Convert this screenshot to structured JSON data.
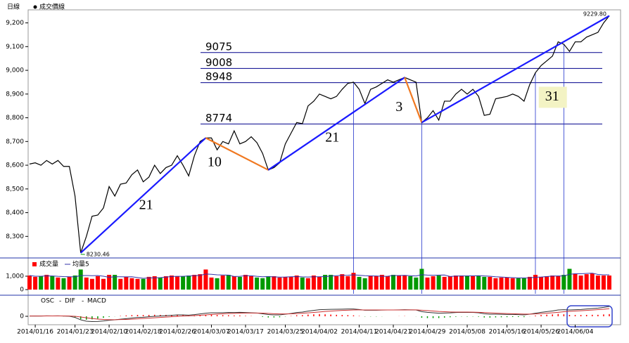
{
  "chart_data": [
    {
      "type": "line",
      "title": "日線",
      "categories": [
        null,
        "2014/01/16",
        null,
        null,
        null,
        null,
        null,
        null,
        "2014/01/23",
        null,
        null,
        null,
        null,
        null,
        "2014/02/10",
        null,
        null,
        null,
        null,
        null,
        "2014/02/18",
        null,
        null,
        null,
        null,
        null,
        "2014/02/26",
        null,
        null,
        null,
        null,
        null,
        "2014/03/07",
        null,
        null,
        null,
        null,
        null,
        "2014/03/17",
        null,
        null,
        null,
        null,
        null,
        null,
        "2014/03/25",
        null,
        null,
        null,
        null,
        null,
        "2014/04/02",
        null,
        null,
        null,
        null,
        null,
        null,
        "2014/04/11",
        null,
        null,
        null,
        null,
        null,
        "2014/04/21",
        null,
        null,
        null,
        null,
        null,
        "2014/04/29",
        null,
        null,
        null,
        null,
        null,
        null,
        "2014/05/08",
        null,
        null,
        null,
        null,
        null,
        null,
        "2014/05/16",
        null,
        null,
        null,
        null,
        null,
        "2014/05/26",
        null,
        null,
        null,
        null,
        null,
        "2014/06/04",
        null,
        null,
        null,
        null,
        null,
        null
      ],
      "series": [
        {
          "name": "成交價線",
          "color": "#000000",
          "values": [
            8605,
            8610,
            8600,
            8620,
            8605,
            8620,
            8595,
            8595,
            8470,
            8230.46,
            8300,
            8385,
            8390,
            8420,
            8510,
            8470,
            8520,
            8525,
            8560,
            8580,
            8530,
            8550,
            8600,
            8565,
            8590,
            8600,
            8640,
            8600,
            8555,
            8640,
            8700,
            8715,
            8715,
            8665,
            8700,
            8690,
            8745,
            8690,
            8700,
            8720,
            8695,
            8650,
            8580,
            8590,
            8610,
            8690,
            8735,
            8780,
            8775,
            8850,
            8870,
            8900,
            8890,
            8880,
            8890,
            8920,
            8945,
            8950,
            8920,
            8860,
            8920,
            8930,
            8945,
            8960,
            8950,
            8960,
            8970,
            8960,
            8950,
            8780,
            8800,
            8830,
            8790,
            8870,
            8870,
            8900,
            8920,
            8900,
            8920,
            8890,
            8810,
            8815,
            8880,
            8885,
            8890,
            8900,
            8890,
            8870,
            8940,
            8990,
            9020,
            9040,
            9060,
            9120,
            9110,
            9080,
            9120,
            9120,
            9140,
            9150,
            9160,
            9200,
            9229.8
          ]
        }
      ],
      "ylim": [
        8215,
        9255
      ],
      "yticks": [
        {
          "value": 8300,
          "label": "8,300"
        },
        {
          "value": 8400,
          "label": "8,400"
        },
        {
          "value": 8500,
          "label": "8,500"
        },
        {
          "value": 8600,
          "label": "8,600"
        },
        {
          "value": 8700,
          "label": "8,700"
        },
        {
          "value": 8800,
          "label": "8,800"
        },
        {
          "value": 8900,
          "label": "8,900"
        },
        {
          "value": 9000,
          "label": "9,000"
        },
        {
          "value": 9100,
          "label": "9,100"
        },
        {
          "value": 9200,
          "label": "9,200"
        }
      ],
      "min_label": "8230.46",
      "max_label": "9229.80",
      "levels": [
        9075,
        9008,
        8948,
        8774
      ],
      "level_color": "#00008b",
      "trend_lines": [
        {
          "start": [
            9,
            8230.46
          ],
          "end": [
            31,
            8715
          ],
          "label": "21",
          "color": "#1a1aff"
        },
        {
          "start": [
            31,
            8715
          ],
          "end": [
            42,
            8580
          ],
          "label": "10",
          "color": "#f07820"
        },
        {
          "start": [
            42,
            8580
          ],
          "end": [
            66,
            8970
          ],
          "label": "21",
          "color": "#1a1aff"
        },
        {
          "start": [
            66,
            8970
          ],
          "end": [
            69,
            8780
          ],
          "label": "3",
          "color": "#f07820"
        },
        {
          "start": [
            69,
            8780
          ],
          "end": [
            102,
            9229.8
          ],
          "label": "31",
          "color": "#1a1aff"
        }
      ],
      "vlines": [
        57,
        69,
        89,
        94
      ]
    },
    {
      "type": "bar",
      "series": [
        {
          "name": "成交量",
          "up_color": "#ff0000",
          "down_color": "#009900",
          "values": [
            1050,
            950,
            1000,
            1100,
            1000,
            900,
            850,
            950,
            1050,
            1500,
            900,
            800,
            1000,
            800,
            1100,
            1100,
            800,
            950,
            850,
            800,
            800,
            950,
            1000,
            900,
            1000,
            1050,
            1000,
            1000,
            1050,
            1100,
            1150,
            1500,
            900,
            850,
            1050,
            1100,
            1000,
            950,
            1100,
            1000,
            900,
            850,
            1000,
            1000,
            900,
            950,
            950,
            1050,
            900,
            850,
            1050,
            950,
            1100,
            1100,
            1000,
            1150,
            1000,
            1250,
            950,
            850,
            1050,
            1000,
            1100,
            1000,
            1100,
            1050,
            1050,
            1000,
            900,
            1550,
            900,
            1000,
            1050,
            950,
            1000,
            1050,
            1050,
            1050,
            1000,
            1050,
            950,
            950,
            850,
            900,
            900,
            850,
            850,
            850,
            950,
            1100,
            950,
            1000,
            1050,
            1000,
            1100,
            1550,
            1200,
            1050,
            1150,
            1200,
            1050,
            1050,
            1050
          ]
        }
      ],
      "average": {
        "name": "均量5",
        "window": 5,
        "color": "#3333aa"
      },
      "ylim": [
        0,
        2100
      ],
      "yticks": [
        0,
        {
          "value": 1000,
          "label": "1,000"
        }
      ]
    },
    {
      "type": "macd",
      "series": [
        {
          "name": "OSC",
          "up_color": "#ff0000",
          "down_color": "#009900",
          "values": [
            0,
            1,
            0,
            1,
            0,
            1,
            -1,
            -1,
            -10,
            -24,
            -29,
            -26,
            -20,
            -13,
            -5,
            -1,
            3,
            7,
            10,
            12,
            11,
            12,
            13,
            12,
            12,
            12,
            13,
            10,
            6,
            8,
            11,
            14,
            14,
            11,
            10,
            9,
            7,
            7,
            4,
            2,
            0,
            -5,
            -10,
            -10,
            -8,
            -2,
            3,
            9,
            10,
            15,
            17,
            19,
            17,
            15,
            13,
            11,
            10,
            8,
            3,
            -2,
            -2,
            -2,
            -1,
            0,
            0,
            1,
            2,
            0,
            -1,
            -12,
            -15,
            -15,
            -15,
            -11,
            -8,
            -4,
            -2,
            -3,
            -2,
            -4,
            -10,
            -11,
            -9,
            -8,
            -7,
            -6,
            -6,
            -7,
            -1,
            6,
            11,
            14,
            16,
            20,
            17,
            12,
            11,
            11,
            12,
            13,
            13,
            16,
            19
          ]
        },
        {
          "name": "DIF",
          "color": "#333333",
          "values": [
            2,
            3,
            2,
            4,
            3,
            4,
            2,
            1,
            -10,
            -30,
            -42,
            -45,
            -44,
            -40,
            -34,
            -30,
            -25,
            -20,
            -15,
            -10,
            -8,
            -4,
            0,
            2,
            5,
            8,
            12,
            12,
            10,
            14,
            20,
            26,
            30,
            30,
            31,
            33,
            32,
            34,
            32,
            30,
            28,
            22,
            15,
            12,
            12,
            18,
            24,
            32,
            36,
            44,
            50,
            56,
            58,
            59,
            60,
            61,
            62,
            62,
            58,
            52,
            52,
            52,
            53,
            54,
            54,
            55,
            56,
            55,
            54,
            40,
            34,
            30,
            26,
            28,
            29,
            32,
            34,
            33,
            33,
            30,
            22,
            18,
            18,
            17,
            16,
            16,
            14,
            12,
            18,
            26,
            34,
            40,
            46,
            54,
            56,
            54,
            56,
            58,
            62,
            66,
            70,
            76,
            84
          ]
        },
        {
          "name": "MACD",
          "color": "#cc3333",
          "values": [
            2,
            2,
            2,
            3,
            3,
            3,
            3,
            2,
            0,
            -6,
            -13,
            -19,
            -24,
            -27,
            -29,
            -29,
            -28,
            -27,
            -25,
            -22,
            -19,
            -16,
            -13,
            -10,
            -7,
            -4,
            -1,
            2,
            4,
            6,
            9,
            12,
            16,
            19,
            21,
            24,
            25,
            27,
            28,
            28,
            28,
            27,
            25,
            22,
            20,
            20,
            21,
            23,
            26,
            29,
            33,
            37,
            41,
            44,
            47,
            50,
            52,
            54,
            55,
            54,
            54,
            54,
            54,
            54,
            54,
            54,
            54,
            55,
            55,
            52,
            49,
            45,
            41,
            39,
            37,
            36,
            36,
            36,
            35,
            34,
            32,
            29,
            27,
            25,
            23,
            22,
            20,
            19,
            19,
            20,
            23,
            26,
            30,
            34,
            39,
            42,
            45,
            47,
            50,
            53,
            57,
            60,
            65
          ]
        }
      ],
      "ylim": [
        -72,
        132
      ],
      "yticks": [
        0
      ]
    }
  ]
}
